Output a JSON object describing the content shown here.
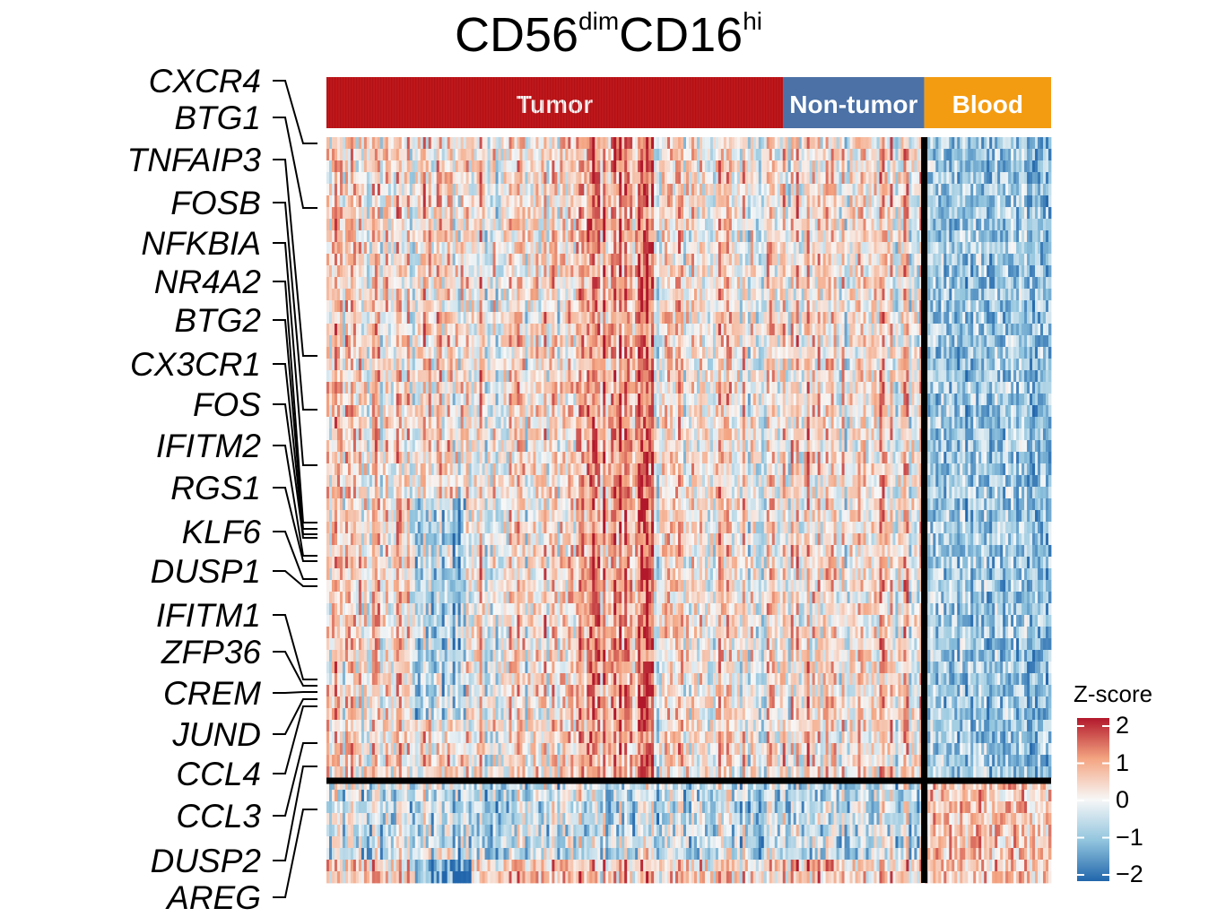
{
  "chart_data": {
    "type": "heatmap",
    "title_main": "CD56",
    "title_sup1": "dim",
    "title_mid": "CD16",
    "title_sup2": "hi",
    "column_groups": [
      {
        "name": "Tumor",
        "color": "#c0171b",
        "fraction": 0.63
      },
      {
        "name": "Non-tumor",
        "color": "#4b71a6",
        "fraction": 0.195
      },
      {
        "name": "Blood",
        "color": "#f39c12",
        "fraction": 0.175
      }
    ],
    "genes": [
      "CXCR4",
      "BTG1",
      "TNFAIP3",
      "FOSB",
      "NFKBIA",
      "NR4A2",
      "BTG2",
      "CX3CR1",
      "FOS",
      "IFITM2",
      "RGS1",
      "KLF6",
      "DUSP1",
      "IFITM1",
      "ZFP36",
      "CREM",
      "JUND",
      "CCL4",
      "CCL3",
      "DUSP2",
      "AREG"
    ],
    "legend": {
      "title": "Z-score",
      "ticks": [
        "2",
        "1",
        "0",
        "−1",
        "−2"
      ],
      "colors": [
        "#2166ac",
        "#4393c3",
        "#92c5de",
        "#d1e5f0",
        "#f7f7f7",
        "#fddbc7",
        "#f4a582",
        "#d6604d",
        "#b2182b"
      ],
      "range": [
        -2,
        2
      ]
    }
  }
}
